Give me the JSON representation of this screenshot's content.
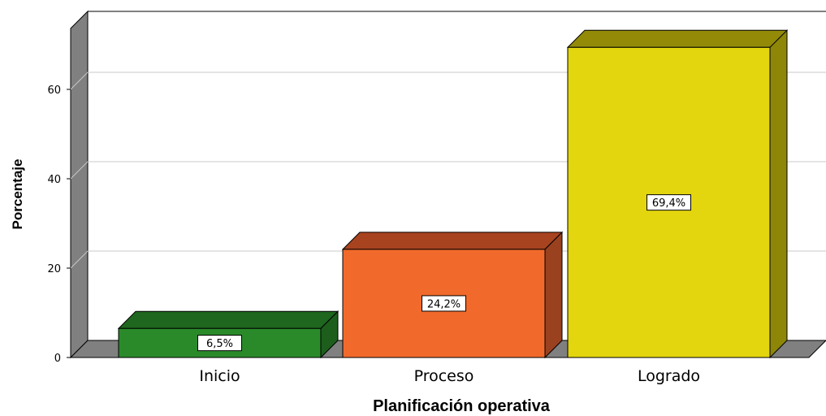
{
  "chart_data": {
    "type": "bar",
    "style": "3d",
    "categories": [
      "Inicio",
      "Proceso",
      "Logrado"
    ],
    "values": [
      6.5,
      24.2,
      69.4
    ],
    "data_labels": [
      "6,5%",
      "24,2%",
      "69,4%"
    ],
    "colors": [
      "#2a8a2a",
      "#f26a2b",
      "#e3d60f"
    ],
    "side_colors": [
      "#1d5e1d",
      "#9a4120",
      "#8e8606"
    ],
    "top_colors": [
      "#1f661f",
      "#a8431f",
      "#938a08"
    ],
    "title": "",
    "xlabel": "Planificación operativa",
    "ylabel": "Porcentaje",
    "ylim": [
      0,
      72
    ],
    "yticks": [
      0,
      20,
      40,
      60
    ],
    "ytick_labels": [
      "0",
      "20",
      "40",
      "60"
    ],
    "grid": true,
    "legend": "none"
  }
}
